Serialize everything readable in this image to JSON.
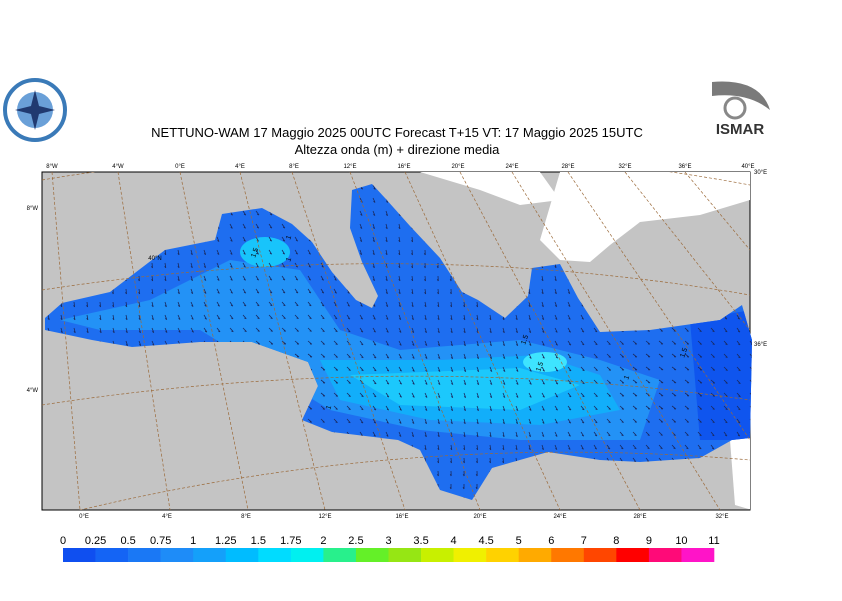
{
  "header": {
    "title": "NETTUNO-WAM  17   Maggio  2025 00UTC Forecast T+15 VT: 17   Maggio  2025 15UTC",
    "subtitle": "Altezza onda (m) + direzione media",
    "logo_text": "ISMAR"
  },
  "map": {
    "top_labels": [
      "8°W",
      "4°W",
      "0°E",
      "4°E",
      "8°E",
      "12°E",
      "16°E",
      "20°E",
      "24°E",
      "28°E",
      "32°E",
      "36°E",
      "40°E"
    ],
    "bottom_labels": [
      "0°E",
      "4°E",
      "8°E",
      "12°E",
      "16°E",
      "20°E",
      "24°E",
      "28°E",
      "32°E"
    ],
    "left_labels": [
      "8°W",
      "4°W"
    ],
    "right_labels": [
      "30°E",
      "36°E"
    ],
    "inner_label": "40°N",
    "contour_labels": [
      "1.5",
      "1",
      "1",
      "1.5",
      "1.5",
      "1",
      "1.5",
      "1"
    ]
  },
  "colorbar": {
    "levels": [
      0,
      0.25,
      0.5,
      0.75,
      1,
      1.25,
      1.5,
      1.75,
      2,
      2.5,
      3,
      3.5,
      4,
      4.5,
      5,
      6,
      7,
      8,
      9,
      10,
      11
    ],
    "colors": [
      "#0f4ff0",
      "#1464f5",
      "#1a78f5",
      "#1e8cf8",
      "#14a0fa",
      "#00bcff",
      "#00dcff",
      "#00f0f0",
      "#28f08c",
      "#64f028",
      "#96e614",
      "#c8f000",
      "#f0f000",
      "#ffd200",
      "#ffaa00",
      "#ff7800",
      "#ff4600",
      "#ff0000",
      "#ff0a78",
      "#ff14c8"
    ]
  }
}
